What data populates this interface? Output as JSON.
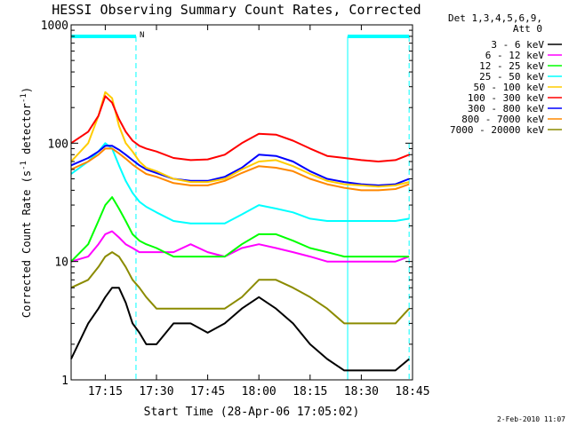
{
  "chart_data": {
    "type": "line",
    "title": "HESSI Observing Summary Count Rates, Corrected",
    "xlabel": "Start Time (28-Apr-06 17:05:02)",
    "ylabel_prefix": "Corrected Count Rate (s",
    "ylabel_sup": "-1",
    "ylabel_mid": " detector",
    "ylabel_suffix": ")",
    "xlim_minutes": [
      0,
      100
    ],
    "ylim": [
      1,
      1000
    ],
    "yscale": "log",
    "x_ticks": [
      {
        "label": "17:15",
        "minutes": 10
      },
      {
        "label": "17:30",
        "minutes": 25
      },
      {
        "label": "17:45",
        "minutes": 40
      },
      {
        "label": "18:00",
        "minutes": 55
      },
      {
        "label": "18:15",
        "minutes": 70
      },
      {
        "label": "18:30",
        "minutes": 85
      },
      {
        "label": "18:45",
        "minutes": 100
      }
    ],
    "y_ticks": [
      {
        "label": "1",
        "value": 1
      },
      {
        "label": "10",
        "value": 10
      },
      {
        "label": "100",
        "value": 100
      },
      {
        "label": "1000",
        "value": 1000
      }
    ],
    "legend_header": [
      "Det 1,3,4,5,6,9,",
      "Att 0"
    ],
    "legend_placement": "right",
    "night_marker_label": "N",
    "night_intervals": [
      [
        0,
        19
      ],
      [
        81,
        99
      ]
    ],
    "minutes": [
      0,
      5,
      8,
      10,
      12,
      14,
      16,
      18,
      20,
      22,
      25,
      30,
      35,
      40,
      45,
      50,
      55,
      60,
      65,
      70,
      75,
      80,
      85,
      90,
      95,
      99
    ],
    "series": [
      {
        "name": "3 - 6 keV",
        "color": "#000000",
        "values": [
          1.5,
          3,
          4,
          5,
          6,
          6,
          4.5,
          3,
          2.5,
          2,
          2,
          3,
          3,
          2.5,
          3,
          4,
          5,
          4,
          3,
          2,
          1.5,
          1.2,
          1.2,
          1.2,
          1.2,
          1.5
        ]
      },
      {
        "name": "6 - 12 keV",
        "color": "#ff00ff",
        "values": [
          10,
          11,
          14,
          17,
          18,
          16,
          14,
          13,
          12,
          12,
          12,
          12,
          14,
          12,
          11,
          13,
          14,
          13,
          12,
          11,
          10,
          10,
          10,
          10,
          10,
          11
        ]
      },
      {
        "name": "12 - 25 keV",
        "color": "#00ff00",
        "values": [
          10,
          14,
          22,
          30,
          35,
          28,
          22,
          17,
          15,
          14,
          13,
          11,
          11,
          11,
          11,
          14,
          17,
          17,
          15,
          13,
          12,
          11,
          11,
          11,
          11,
          11
        ]
      },
      {
        "name": "25 - 50 keV",
        "color": "#00ffff",
        "values": [
          55,
          70,
          85,
          100,
          90,
          65,
          48,
          38,
          32,
          29,
          26,
          22,
          21,
          21,
          21,
          25,
          30,
          28,
          26,
          23,
          22,
          22,
          22,
          22,
          22,
          23
        ]
      },
      {
        "name": "50 - 100 keV",
        "color": "#ffcc00",
        "values": [
          70,
          100,
          170,
          270,
          240,
          140,
          100,
          85,
          70,
          62,
          58,
          50,
          47,
          47,
          50,
          60,
          70,
          72,
          64,
          55,
          48,
          45,
          44,
          43,
          44,
          47
        ]
      },
      {
        "name": "100 - 300 keV",
        "color": "#ff0000",
        "values": [
          100,
          125,
          170,
          250,
          220,
          160,
          125,
          105,
          95,
          90,
          85,
          75,
          72,
          73,
          80,
          100,
          120,
          118,
          105,
          90,
          78,
          75,
          72,
          70,
          72,
          80
        ]
      },
      {
        "name": "300 - 800 keV",
        "color": "#0000ff",
        "values": [
          65,
          75,
          85,
          95,
          95,
          88,
          80,
          72,
          65,
          60,
          56,
          50,
          48,
          48,
          52,
          62,
          80,
          78,
          70,
          58,
          50,
          47,
          45,
          44,
          45,
          50
        ]
      },
      {
        "name": "800 - 7000 keV",
        "color": "#ff8800",
        "values": [
          60,
          70,
          80,
          90,
          90,
          82,
          74,
          66,
          60,
          55,
          52,
          46,
          44,
          44,
          48,
          56,
          64,
          62,
          58,
          50,
          45,
          42,
          40,
          40,
          41,
          45
        ]
      },
      {
        "name": "7000 - 20000 keV",
        "color": "#8b8b00",
        "values": [
          6,
          7,
          9,
          11,
          12,
          11,
          9,
          7,
          6,
          5,
          4,
          4,
          4,
          4,
          4,
          5,
          7,
          7,
          6,
          5,
          4,
          3,
          3,
          3,
          3,
          4
        ]
      }
    ]
  },
  "footer_date": "2-Feb-2010 11:07"
}
